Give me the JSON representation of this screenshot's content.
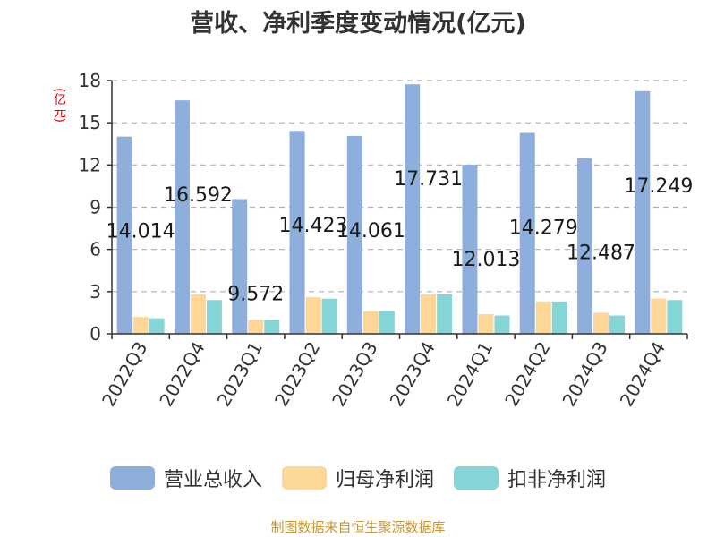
{
  "title": "营收、净利季度变动情况(亿元)",
  "unit_label": "(亿元)",
  "source": "制图数据来自恒生聚源数据库",
  "colors": {
    "revenue": "#8eaedb",
    "net_profit": "#fdd798",
    "deducted_profit": "#85d5d7",
    "grid": "#b0b0b0",
    "axis": "#333333"
  },
  "chart_data": {
    "type": "bar",
    "title": "营收、净利季度变动情况(亿元)",
    "ylabel": "(亿元)",
    "ylim": [
      0,
      18
    ],
    "yticks": [
      0,
      3,
      6,
      9,
      12,
      15,
      18
    ],
    "grid": true,
    "legend_position": "bottom",
    "categories": [
      "2022Q3",
      "2022Q4",
      "2023Q1",
      "2023Q2",
      "2023Q3",
      "2023Q4",
      "2024Q1",
      "2024Q2",
      "2024Q3",
      "2024Q4"
    ],
    "series": [
      {
        "name": "营业总收入",
        "values": [
          14.014,
          16.592,
          9.572,
          14.423,
          14.061,
          17.731,
          12.013,
          14.279,
          12.487,
          17.249
        ]
      },
      {
        "name": "归母净利润",
        "values": [
          1.2,
          2.8,
          1.0,
          2.6,
          1.6,
          2.8,
          1.4,
          2.3,
          1.5,
          2.5
        ]
      },
      {
        "name": "扣非净利润",
        "values": [
          1.1,
          2.4,
          1.0,
          2.5,
          1.6,
          2.8,
          1.3,
          2.3,
          1.3,
          2.4
        ]
      }
    ],
    "data_labels": [
      "14.014",
      "16.592",
      "9.572",
      "14.423",
      "14.061",
      "17.731",
      "12.013",
      "14.279",
      "12.487",
      "17.249"
    ]
  }
}
